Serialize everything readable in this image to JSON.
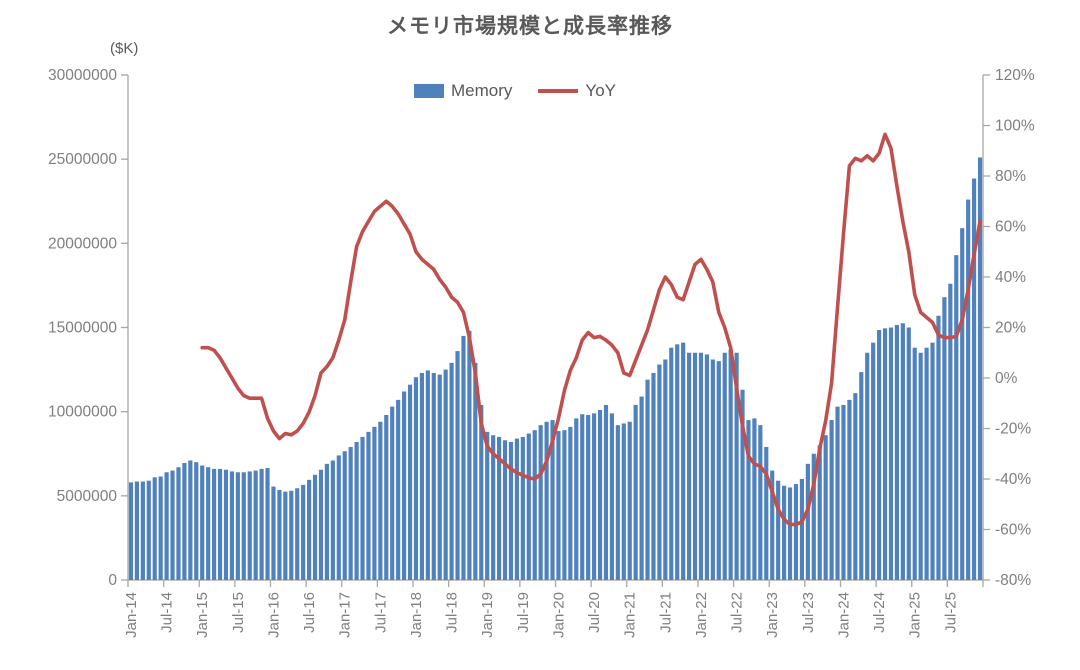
{
  "title": "メモリ市場規模と成長率推移",
  "unit_label": "($K)",
  "legend": {
    "memory_label": "Memory",
    "yoy_label": "YoY"
  },
  "colors": {
    "bar": "#4f81bd",
    "line": "#c0504d",
    "title_text": "#595959",
    "axis_text": "#7f7f7f",
    "axis_line": "#a6a6a6",
    "background": "#ffffff"
  },
  "chart_data": {
    "type": "combo bar+line, dual axis",
    "title": "メモリ市場規模と成長率推移",
    "grid": false,
    "legend_position": "top-center",
    "x_label_interval": 6,
    "x_tick_labels": [
      "Jan-14",
      "Jul-14",
      "Jan-15",
      "Jul-15",
      "Jan-16",
      "Jul-16",
      "Jan-17",
      "Jul-17",
      "Jan-18",
      "Jul-18",
      "Jan-19",
      "Jul-19",
      "Jan-20",
      "Jul-20",
      "Jan-21",
      "Jul-21",
      "Jan-22",
      "Jul-22",
      "Jan-23",
      "Jul-23",
      "Jan-24",
      "Jul-24",
      "Jan-25",
      "Jul-25"
    ],
    "categories": [
      "Jan-14",
      "Feb-14",
      "Mar-14",
      "Apr-14",
      "May-14",
      "Jun-14",
      "Jul-14",
      "Aug-14",
      "Sep-14",
      "Oct-14",
      "Nov-14",
      "Dec-14",
      "Jan-15",
      "Feb-15",
      "Mar-15",
      "Apr-15",
      "May-15",
      "Jun-15",
      "Jul-15",
      "Aug-15",
      "Sep-15",
      "Oct-15",
      "Nov-15",
      "Dec-15",
      "Jan-16",
      "Feb-16",
      "Mar-16",
      "Apr-16",
      "May-16",
      "Jun-16",
      "Jul-16",
      "Aug-16",
      "Sep-16",
      "Oct-16",
      "Nov-16",
      "Dec-16",
      "Jan-17",
      "Feb-17",
      "Mar-17",
      "Apr-17",
      "May-17",
      "Jun-17",
      "Jul-17",
      "Aug-17",
      "Sep-17",
      "Oct-17",
      "Nov-17",
      "Dec-17",
      "Jan-18",
      "Feb-18",
      "Mar-18",
      "Apr-18",
      "May-18",
      "Jun-18",
      "Jul-18",
      "Aug-18",
      "Sep-18",
      "Oct-18",
      "Nov-18",
      "Dec-18",
      "Jan-19",
      "Feb-19",
      "Mar-19",
      "Apr-19",
      "May-19",
      "Jun-19",
      "Jul-19",
      "Aug-19",
      "Sep-19",
      "Oct-19",
      "Nov-19",
      "Dec-19",
      "Jan-20",
      "Feb-20",
      "Mar-20",
      "Apr-20",
      "May-20",
      "Jun-20",
      "Jul-20",
      "Aug-20",
      "Sep-20",
      "Oct-20",
      "Nov-20",
      "Dec-20",
      "Jan-21",
      "Feb-21",
      "Mar-21",
      "Apr-21",
      "May-21",
      "Jun-21",
      "Jul-21",
      "Aug-21",
      "Sep-21",
      "Oct-21",
      "Nov-21",
      "Dec-21",
      "Jan-22",
      "Feb-22",
      "Mar-22",
      "Apr-22",
      "May-22",
      "Jun-22",
      "Jul-22",
      "Aug-22",
      "Sep-22",
      "Oct-22",
      "Nov-22",
      "Dec-22",
      "Jan-23",
      "Feb-23",
      "Mar-23",
      "Apr-23",
      "May-23",
      "Jun-23",
      "Jul-23",
      "Aug-23",
      "Sep-23",
      "Oct-23",
      "Nov-23",
      "Dec-23",
      "Jan-24",
      "Feb-24",
      "Mar-24",
      "Apr-24",
      "May-24",
      "Jun-24",
      "Jul-24",
      "Aug-24",
      "Sep-24",
      "Oct-24",
      "Nov-24",
      "Dec-24",
      "Jan-25",
      "Feb-25",
      "Mar-25",
      "Apr-25",
      "May-25",
      "Jun-25",
      "Jul-25",
      "Aug-25",
      "Sep-25",
      "Oct-25",
      "Nov-25",
      "Dec-25"
    ],
    "series": [
      {
        "name": "Memory",
        "type": "bar",
        "axis": "left",
        "unit": "$K",
        "color": "#4f81bd",
        "values": [
          5800000,
          5850000,
          5850000,
          5900000,
          6100000,
          6150000,
          6400000,
          6500000,
          6700000,
          6950000,
          7100000,
          7000000,
          6800000,
          6700000,
          6600000,
          6600000,
          6550000,
          6450000,
          6400000,
          6400000,
          6450000,
          6500000,
          6600000,
          6650000,
          5550000,
          5350000,
          5250000,
          5300000,
          5450000,
          5650000,
          5950000,
          6250000,
          6550000,
          6900000,
          7100000,
          7400000,
          7650000,
          7900000,
          8200000,
          8500000,
          8800000,
          9100000,
          9400000,
          9800000,
          10300000,
          10700000,
          11200000,
          11600000,
          12050000,
          12300000,
          12450000,
          12300000,
          12200000,
          12500000,
          12900000,
          13600000,
          14500000,
          14800000,
          12900000,
          10400000,
          8800000,
          8600000,
          8500000,
          8300000,
          8200000,
          8400000,
          8500000,
          8700000,
          8900000,
          9200000,
          9400000,
          9500000,
          8850000,
          8900000,
          9100000,
          9600000,
          9850000,
          9800000,
          9900000,
          10100000,
          10400000,
          9900000,
          9200000,
          9300000,
          9400000,
          10400000,
          10900000,
          11900000,
          12300000,
          12800000,
          13100000,
          13800000,
          14000000,
          14100000,
          13500000,
          13500000,
          13500000,
          13400000,
          13100000,
          13000000,
          13500000,
          13700000,
          13500000,
          11300000,
          9500000,
          9600000,
          9200000,
          7900000,
          6500000,
          5900000,
          5600000,
          5500000,
          5700000,
          6000000,
          6900000,
          7500000,
          8000000,
          8600000,
          9500000,
          10300000,
          10400000,
          10700000,
          11100000,
          12350000,
          13500000,
          14100000,
          14850000,
          14950000,
          15000000,
          15150000,
          15250000,
          15000000,
          13800000,
          13500000,
          13800000,
          14100000,
          15700000,
          16800000,
          17600000,
          19300000,
          20900000,
          22600000,
          23850000,
          25100000
        ]
      },
      {
        "name": "YoY",
        "type": "line",
        "axis": "right",
        "unit": "%",
        "color": "#c0504d",
        "values": [
          null,
          null,
          null,
          null,
          null,
          null,
          null,
          null,
          null,
          null,
          null,
          null,
          12,
          12,
          11,
          8,
          4,
          0,
          -4,
          -7,
          -8,
          -8,
          -8,
          -16,
          -21,
          -24,
          -22,
          -22.5,
          -21,
          -18,
          -13.5,
          -7,
          2,
          4.5,
          8,
          15,
          23,
          38,
          52,
          58,
          62,
          66,
          68,
          70,
          68,
          65,
          61,
          57,
          50,
          47,
          45,
          43,
          39,
          36,
          32,
          30,
          26,
          16,
          2,
          -18,
          -27,
          -30,
          -32,
          -34,
          -36,
          -37.5,
          -38.5,
          -39.5,
          -40,
          -38,
          -33,
          -25,
          -16,
          -5,
          3,
          8,
          15,
          18,
          16,
          16.5,
          15,
          13,
          10,
          2,
          1,
          7,
          13,
          19,
          27,
          35,
          40,
          37,
          32,
          31,
          38,
          45,
          47,
          43,
          38,
          26,
          20,
          12,
          -4,
          -19,
          -31,
          -34,
          -35,
          -38,
          -45,
          -52,
          -56,
          -58,
          -58,
          -57,
          -52,
          -42,
          -28,
          -17,
          -2,
          28,
          57,
          84,
          87,
          86,
          88,
          86,
          89,
          96.5,
          91,
          76,
          62,
          50,
          33,
          26,
          24,
          22,
          17,
          16,
          16,
          16.5,
          23,
          35,
          49,
          62
        ]
      }
    ],
    "left_axis": {
      "title": "($K)",
      "min": 0,
      "max": 30000000,
      "step": 5000000,
      "tick_labels": [
        "0",
        "5000000",
        "10000000",
        "15000000",
        "20000000",
        "25000000",
        "30000000"
      ]
    },
    "right_axis": {
      "min": -80,
      "max": 120,
      "step": 20,
      "tick_labels": [
        "-80%",
        "-60%",
        "-40%",
        "-20%",
        "0%",
        "20%",
        "40%",
        "60%",
        "80%",
        "100%",
        "120%"
      ]
    }
  }
}
